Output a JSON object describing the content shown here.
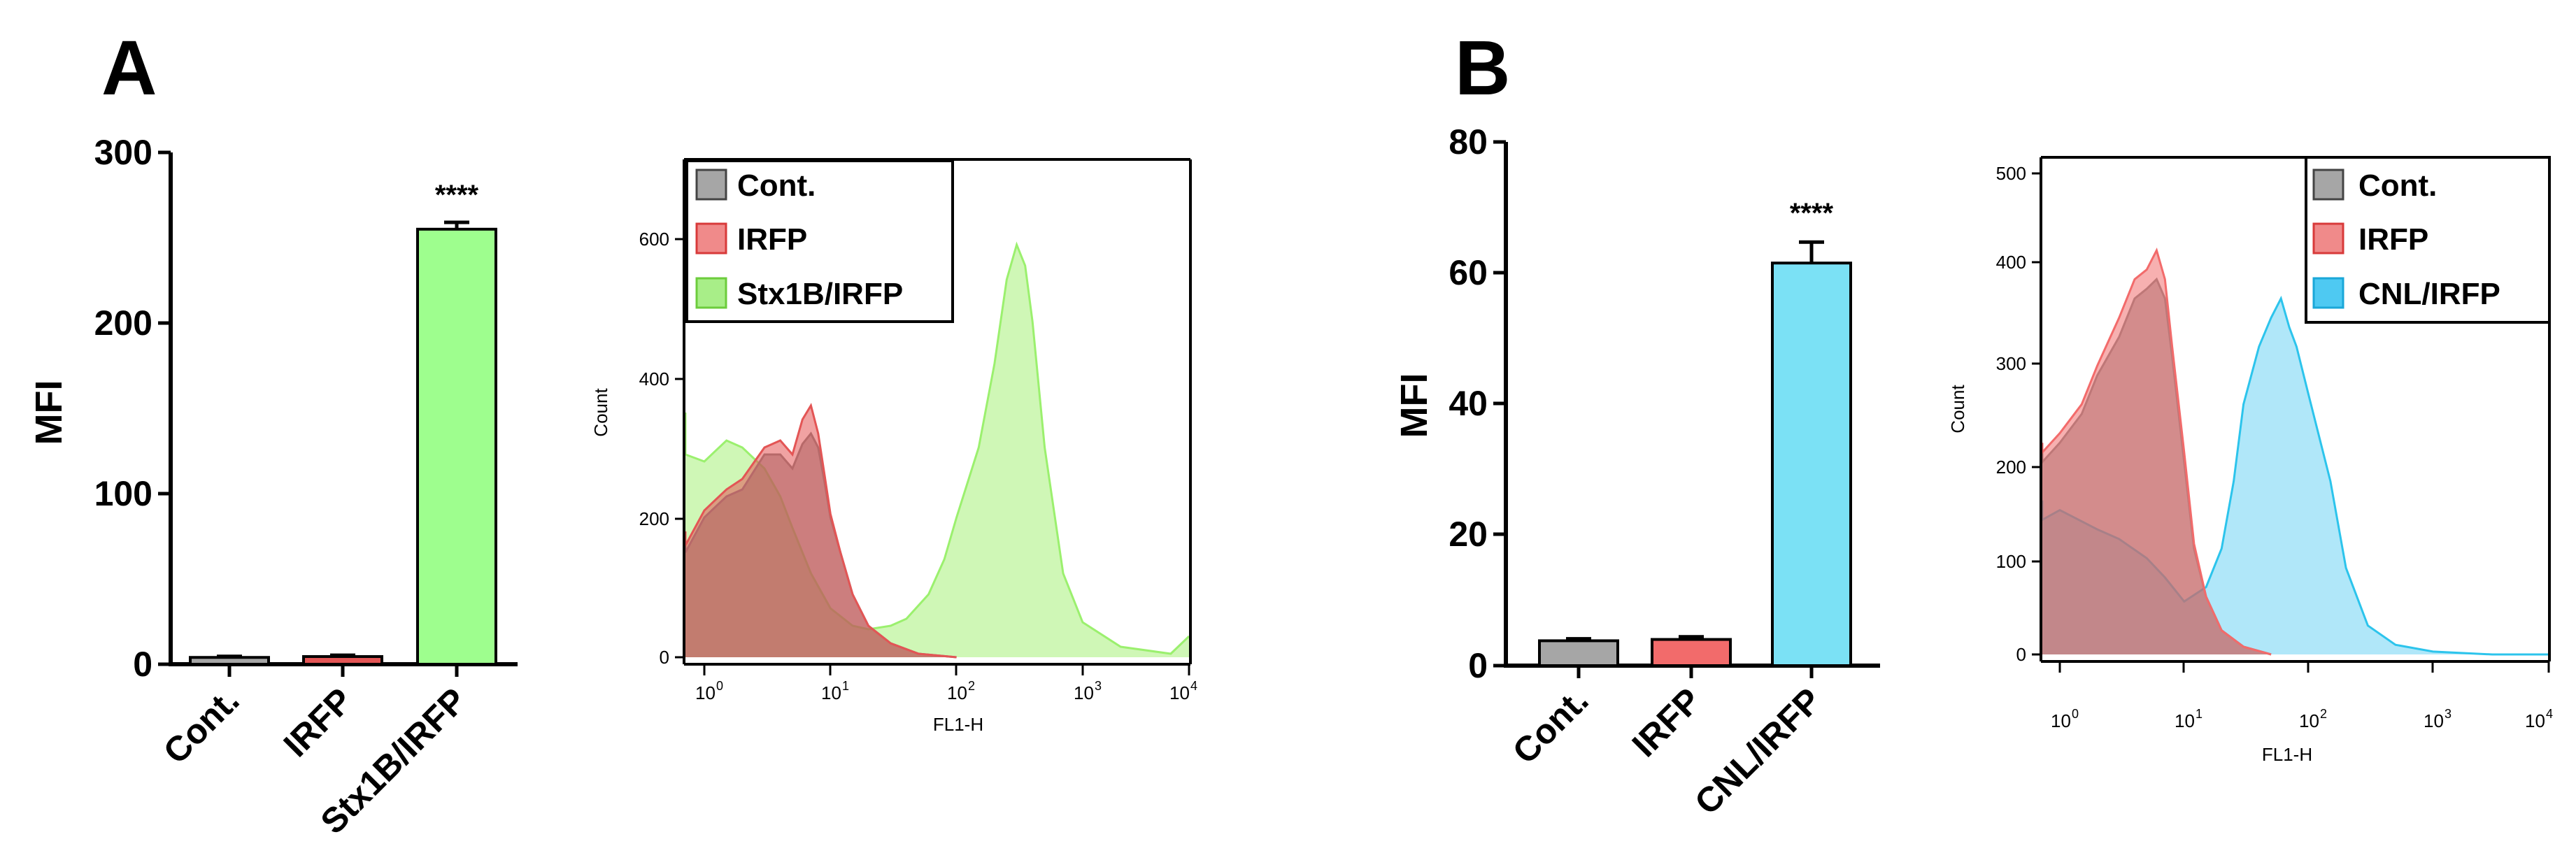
{
  "chart_data": [
    {
      "panel": "A",
      "type": "bar",
      "ylabel": "MFI",
      "ylim": [
        0,
        300
      ],
      "yticks": [
        "0",
        "100",
        "200",
        "300"
      ],
      "categories": [
        "Cont.",
        "IRFP",
        "Stx1B/IRFP"
      ],
      "values": [
        4,
        4.5,
        255
      ],
      "errors": [
        0.6,
        0.8,
        4
      ],
      "colors": [
        "#a6a6a6",
        "#e35555",
        "#9efe8e"
      ],
      "significance": "****"
    },
    {
      "panel": "A",
      "type": "area",
      "xlabel": "FL1-H",
      "ylabel": "Count",
      "xscale": "log",
      "xlim": [
        0.5,
        10000
      ],
      "ylim": [
        0,
        700
      ],
      "yticks": [
        "0",
        "200",
        "400",
        "600"
      ],
      "xticks": [
        {
          "base": "10",
          "exp": "0"
        },
        {
          "base": "10",
          "exp": "1"
        },
        {
          "base": "10",
          "exp": "2"
        },
        {
          "base": "10",
          "exp": "3"
        },
        {
          "base": "10",
          "exp": "4"
        }
      ],
      "legend": [
        "Cont.",
        "IRFP",
        "Stx1B/IRFP"
      ],
      "legend_position": "top-left",
      "series": [
        {
          "name": "Cont.",
          "color": "#808080",
          "x": [
            0.5,
            0.7,
            1,
            1.5,
            2,
            3,
            4,
            5,
            6,
            7,
            8,
            9,
            10,
            12,
            15,
            20,
            30,
            50,
            100
          ],
          "y": [
            170,
            150,
            200,
            230,
            240,
            290,
            290,
            270,
            305,
            320,
            300,
            250,
            200,
            150,
            90,
            45,
            20,
            5,
            0
          ]
        },
        {
          "name": "IRFP",
          "color": "#e35555",
          "x": [
            0.5,
            0.7,
            1,
            1.5,
            2,
            3,
            4,
            5,
            6,
            7,
            8,
            9,
            10,
            12,
            15,
            20,
            30,
            50,
            100
          ],
          "y": [
            180,
            160,
            210,
            240,
            255,
            300,
            310,
            290,
            340,
            360,
            320,
            260,
            205,
            150,
            90,
            45,
            20,
            5,
            0
          ]
        },
        {
          "name": "Stx1B/IRFP",
          "color": "#9bf06e",
          "x": [
            0.5,
            0.7,
            1,
            1.5,
            2,
            3,
            4,
            5,
            7,
            10,
            15,
            20,
            30,
            40,
            60,
            80,
            100,
            150,
            200,
            250,
            300,
            350,
            400,
            500,
            700,
            1000,
            2000,
            5000,
            10000
          ],
          "y": [
            350,
            290,
            280,
            310,
            300,
            270,
            230,
            185,
            120,
            70,
            45,
            40,
            45,
            55,
            90,
            140,
            200,
            300,
            420,
            540,
            590,
            560,
            480,
            300,
            120,
            50,
            15,
            5,
            30
          ]
        }
      ]
    },
    {
      "panel": "B",
      "type": "bar",
      "ylabel": "MFI",
      "ylim": [
        0,
        80
      ],
      "yticks": [
        "0",
        "20",
        "40",
        "60",
        "80"
      ],
      "categories": [
        "Cont.",
        "IRFP",
        "CNL/IRFP"
      ],
      "values": [
        3.8,
        4.0,
        61.5
      ],
      "errors": [
        0.3,
        0.4,
        3.2
      ],
      "colors": [
        "#a6a6a6",
        "#f26b6b",
        "#7be1f5"
      ],
      "significance": "****"
    },
    {
      "panel": "B",
      "type": "area",
      "xlabel": "FL1-H",
      "ylabel": "Count",
      "xscale": "log",
      "xlim": [
        0.5,
        10000
      ],
      "ylim": [
        0,
        500
      ],
      "yticks": [
        "0",
        "100",
        "200",
        "300",
        "400",
        "500"
      ],
      "xticks": [
        {
          "base": "10",
          "exp": "0"
        },
        {
          "base": "10",
          "exp": "1"
        },
        {
          "base": "10",
          "exp": "2"
        },
        {
          "base": "10",
          "exp": "3"
        },
        {
          "base": "10",
          "exp": "4"
        }
      ],
      "legend": [
        "Cont.",
        "IRFP",
        "CNL/IRFP"
      ],
      "legend_position": "top-right",
      "series": [
        {
          "name": "Cont.",
          "color": "#808080",
          "x": [
            0.5,
            0.7,
            1,
            1.5,
            2,
            3,
            4,
            5,
            6,
            7,
            8,
            10,
            12,
            15,
            20,
            30,
            50
          ],
          "y": [
            210,
            200,
            220,
            250,
            290,
            330,
            370,
            380,
            390,
            370,
            310,
            200,
            110,
            60,
            25,
            8,
            0
          ]
        },
        {
          "name": "IRFP",
          "color": "#f26b6b",
          "x": [
            0.5,
            0.7,
            1,
            1.5,
            2,
            3,
            4,
            5,
            6,
            7,
            8,
            10,
            12,
            15,
            20,
            30,
            50
          ],
          "y": [
            220,
            210,
            230,
            260,
            300,
            350,
            390,
            400,
            420,
            390,
            320,
            210,
            115,
            60,
            25,
            8,
            0
          ]
        },
        {
          "name": "CNL/IRFP",
          "color": "#2cc4ec",
          "x": [
            0.5,
            0.7,
            1,
            2,
            3,
            5,
            7,
            10,
            15,
            20,
            25,
            30,
            40,
            50,
            60,
            70,
            80,
            100,
            150,
            200,
            300,
            500,
            1000,
            3000,
            10000
          ],
          "y": [
            160,
            140,
            150,
            130,
            120,
            100,
            80,
            55,
            70,
            110,
            180,
            260,
            320,
            350,
            370,
            340,
            320,
            270,
            180,
            90,
            30,
            10,
            3,
            0,
            0
          ]
        }
      ]
    }
  ],
  "labels": {
    "panel_a": "A",
    "panel_b": "B",
    "hist_xlabel": "FL1-H",
    "hist_ylabel": "Count",
    "bar_ylabel": "MFI"
  }
}
